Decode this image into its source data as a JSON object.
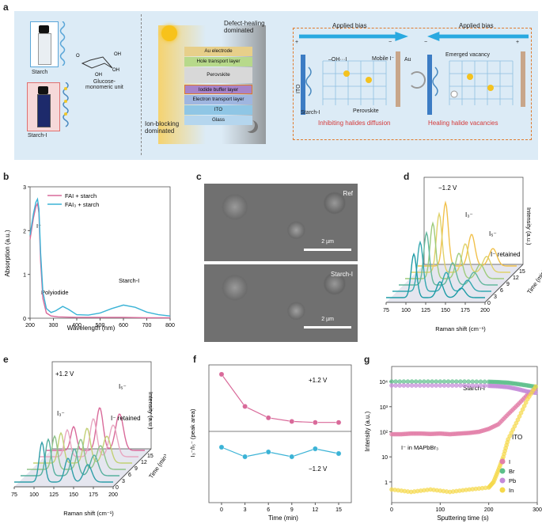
{
  "panel_a": {
    "label": "a",
    "starch_label": "Starch",
    "starchI_label": "Starch-I",
    "glucose_label": "Glucose-\nmonomeric unit",
    "defect_healing": "Defect-healing\ndominated",
    "ion_blocking": "Ion-blocking\ndominated",
    "layers": [
      "Au electrode",
      "Hole transport layer",
      "Perovskite",
      "Iodide buffer layer",
      "Electron transport layer",
      "ITO",
      "Glass"
    ],
    "applied_bias": "Applied bias",
    "applied_bias_2": "Applied bias",
    "oh_label": "–OH···I",
    "mobile_label": "Mobile I⁻",
    "au_label": "Au",
    "ito_label": "ITO",
    "starchI_inner": "Starch-I",
    "perovskite_label": "Perovskite",
    "emerged_vacancy": "Emerged vacancy",
    "caption_left": "Inhibiting halides diffusion",
    "caption_right": "Healing halide vacancies",
    "plus_left": "+",
    "minus_left": "−",
    "minus_right": "−",
    "plus_right": "+"
  },
  "panel_b": {
    "label": "b",
    "legend": [
      "FAI + starch",
      "FAI₃ + starch"
    ],
    "annotations": [
      "I⁻",
      "Polyiodide",
      "Starch-I"
    ],
    "xlabel": "Wavelength (nm)",
    "ylabel": "Absorption (a.u.)"
  },
  "panel_c": {
    "label": "c",
    "ref": "Ref",
    "starchI": "Starch-I",
    "scale1": "2 µm",
    "scale2": "2 µm"
  },
  "panel_d": {
    "label": "d",
    "voltage": "−1.2 V",
    "i3": "I₃⁻",
    "i5": "I₅⁻",
    "retained": "I⁻ retained",
    "intensity": "Intensity (a.u.)",
    "time": "Time (min)",
    "xlabel": "Raman shift (cm⁻¹)",
    "xticks": [
      "75",
      "100",
      "125",
      "150",
      "175",
      "200"
    ],
    "tticks": [
      "0",
      "3",
      "6",
      "9",
      "12",
      "15"
    ]
  },
  "panel_e": {
    "label": "e",
    "voltage": "+1.2 V",
    "i3": "I₃⁻",
    "i5": "I₅⁻",
    "retained": "I⁻ retained",
    "intensity": "Intensity (a.u.)",
    "time": "Time (min)",
    "xlabel": "Raman shift (cm⁻¹)",
    "xticks": [
      "75",
      "100",
      "125",
      "150",
      "175",
      "200"
    ],
    "tticks": [
      "0",
      "3",
      "6",
      "9",
      "12",
      "15"
    ]
  },
  "panel_f": {
    "label": "f",
    "top_label": "+1.2 V",
    "bottom_label": "−1.2 V",
    "xlabel": "Time (min)",
    "ylabel": "I₃⁻/I₅⁻ (peak area)"
  },
  "panel_g": {
    "label": "g",
    "starchI": "Starch-I",
    "ito": "ITO",
    "mapbbr": "I⁻ in MAPbBr₃",
    "legend": [
      "I",
      "Br",
      "Pb",
      "In"
    ],
    "xlabel": "Sputtering time (s)",
    "ylabel": "Intensity (a.u.)"
  },
  "chart_data": [
    {
      "id": "b",
      "type": "line",
      "xlabel": "Wavelength (nm)",
      "ylabel": "Absorption (a.u.)",
      "xlim": [
        200,
        800
      ],
      "ylim": [
        0,
        3
      ],
      "xticks": [
        200,
        300,
        400,
        500,
        600,
        700,
        800
      ],
      "yticks": [
        0,
        1,
        2,
        3
      ],
      "series": [
        {
          "name": "FAI + starch",
          "color": "#d96a9a",
          "x": [
            200,
            215,
            225,
            232,
            238,
            245,
            255,
            270,
            290,
            320,
            400,
            500,
            600,
            700,
            800
          ],
          "y": [
            1.8,
            2.3,
            2.55,
            2.62,
            2.4,
            1.3,
            0.45,
            0.12,
            0.05,
            0.03,
            0.02,
            0.02,
            0.02,
            0.01,
            0.01
          ]
        },
        {
          "name": "FAI₃ + starch",
          "color": "#3bb3d6",
          "x": [
            200,
            215,
            225,
            232,
            238,
            245,
            255,
            270,
            290,
            310,
            340,
            365,
            400,
            450,
            500,
            550,
            600,
            650,
            700,
            750,
            800
          ],
          "y": [
            1.9,
            2.4,
            2.65,
            2.72,
            2.5,
            1.5,
            0.6,
            0.22,
            0.13,
            0.17,
            0.27,
            0.2,
            0.08,
            0.07,
            0.12,
            0.22,
            0.3,
            0.25,
            0.14,
            0.08,
            0.05
          ]
        }
      ]
    },
    {
      "id": "f",
      "type": "scatter",
      "xlabel": "Time (min)",
      "ylabel": "I₃⁻/I₅⁻ (peak area)",
      "x": [
        0,
        3,
        6,
        9,
        12,
        15
      ],
      "series": [
        {
          "name": "+1.2 V",
          "color": "#d96a9a",
          "values": [
            4.9,
            1.8,
            0.7,
            0.35,
            0.25,
            0.25
          ]
        },
        {
          "name": "−1.2 V",
          "color": "#3bb3d6",
          "values": [
            5.5,
            4.9,
            5.2,
            4.9,
            5.4,
            5.1
          ]
        }
      ]
    },
    {
      "id": "g",
      "type": "scatter",
      "xlabel": "Sputtering time (s)",
      "ylabel": "Intensity (a.u.)",
      "xlim": [
        0,
        300
      ],
      "yscale": "log",
      "xticks": [
        0,
        100,
        200,
        300
      ],
      "yticks": [
        "1",
        "10",
        "10²",
        "10³",
        "10⁴"
      ],
      "series": [
        {
          "name": "I",
          "color": "#e27fa8",
          "x": [
            0,
            20,
            40,
            60,
            80,
            100,
            120,
            140,
            160,
            180,
            200,
            220,
            240,
            260,
            280,
            300
          ],
          "y": [
            80,
            80,
            85,
            85,
            82,
            85,
            80,
            85,
            90,
            100,
            130,
            200,
            500,
            1200,
            3000,
            6000
          ]
        },
        {
          "name": "Br",
          "color": "#5cbf8a",
          "x": [
            0,
            50,
            100,
            150,
            200,
            220,
            240,
            260,
            280,
            300
          ],
          "y": [
            10000,
            10000,
            10000,
            10000,
            9800,
            9500,
            9000,
            8000,
            7000,
            6000
          ]
        },
        {
          "name": "Pb",
          "color": "#c48ad8",
          "x": [
            0,
            50,
            100,
            150,
            200,
            220,
            240,
            260,
            280,
            300
          ],
          "y": [
            7000,
            7000,
            7000,
            7000,
            6800,
            6500,
            6000,
            5000,
            4000,
            3500
          ]
        },
        {
          "name": "In",
          "color": "#f5d84a",
          "x": [
            0,
            40,
            80,
            120,
            160,
            200,
            210,
            220,
            230,
            240,
            260,
            280,
            300
          ],
          "y": [
            0.5,
            0.4,
            0.5,
            0.4,
            0.5,
            0.6,
            1,
            3,
            10,
            50,
            300,
            2000,
            8000
          ]
        }
      ]
    }
  ]
}
